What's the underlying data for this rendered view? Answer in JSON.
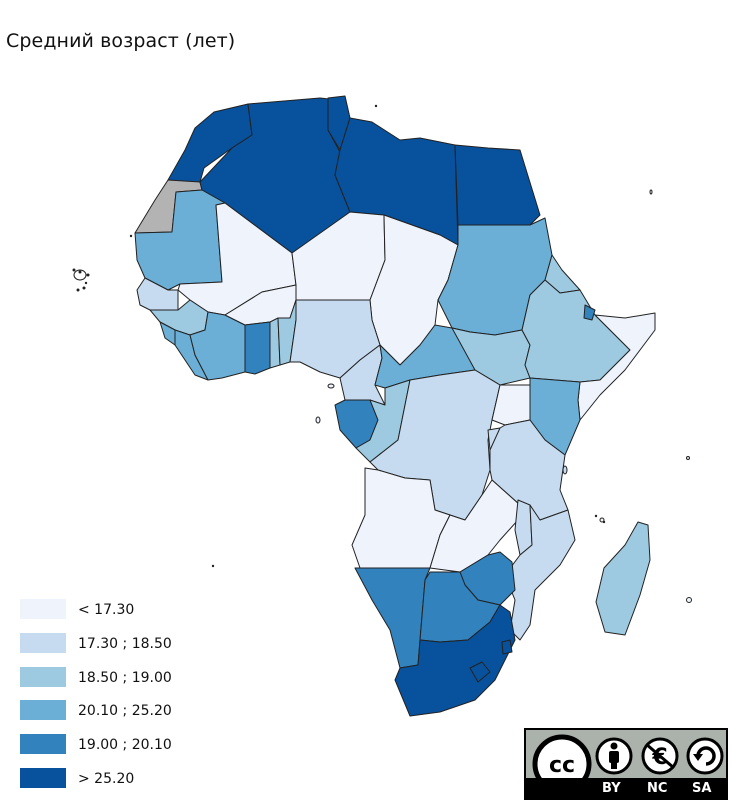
{
  "title": "Средний возраст (лет)",
  "colors": {
    "c1": "#eef3fc",
    "c2": "#c6dbef",
    "c3": "#9ecae1",
    "c4": "#6baed6",
    "c5": "#3182bd",
    "c6": "#08519c",
    "no_data": "#b3b3b3",
    "border": "#222222"
  },
  "legend": [
    {
      "label": "< 17.30",
      "color": "#eef3fc"
    },
    {
      "label": "17.30 ; 18.50",
      "color": "#c6dbef"
    },
    {
      "label": "18.50 ; 19.00",
      "color": "#9ecae1"
    },
    {
      "label": "20.10 ; 25.20",
      "color": "#6baed6"
    },
    {
      "label": "19.00 ; 20.10",
      "color": "#3182bd"
    },
    {
      "label": "> 25.20",
      "color": "#08519c"
    }
  ],
  "license": {
    "cc": "cc",
    "by": "BY",
    "nc": "NC",
    "sa": "SA"
  }
}
